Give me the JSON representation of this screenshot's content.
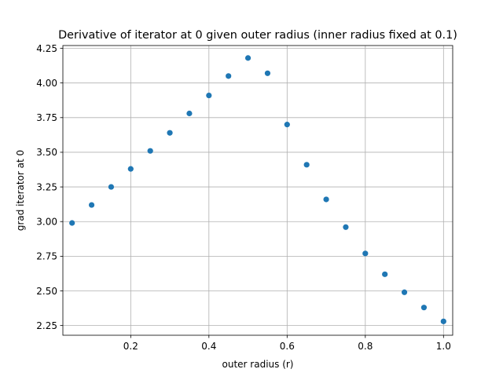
{
  "chart_data": {
    "type": "scatter",
    "title": "Derivative of iterator at 0 given outer radius (inner radius fixed at 0.1)",
    "xlabel": "outer radius (r)",
    "ylabel": "grad iterator at 0",
    "xlim": [
      0.0265,
      1.0235
    ],
    "ylim": [
      2.18,
      4.27
    ],
    "x_ticks": [
      0.2,
      0.4,
      0.6,
      0.8,
      1.0
    ],
    "x_tick_labels": [
      "0.2",
      "0.4",
      "0.6",
      "0.8",
      "1.0"
    ],
    "y_ticks": [
      2.25,
      2.5,
      2.75,
      3.0,
      3.25,
      3.5,
      3.75,
      4.0,
      4.25
    ],
    "y_tick_labels": [
      "2.25",
      "2.50",
      "2.75",
      "3.00",
      "3.25",
      "3.50",
      "3.75",
      "4.00",
      "4.25"
    ],
    "grid": true,
    "marker_color": "#1f77b4",
    "x": [
      0.05,
      0.1,
      0.15,
      0.2,
      0.25,
      0.3,
      0.35,
      0.4,
      0.45,
      0.5,
      0.55,
      0.6,
      0.65,
      0.7,
      0.75,
      0.8,
      0.85,
      0.9,
      0.95,
      1.0
    ],
    "y": [
      2.99,
      3.12,
      3.25,
      3.38,
      3.51,
      3.64,
      3.78,
      3.91,
      4.05,
      4.18,
      4.07,
      3.7,
      3.41,
      3.16,
      2.96,
      2.77,
      2.62,
      2.49,
      2.38,
      2.28
    ]
  }
}
